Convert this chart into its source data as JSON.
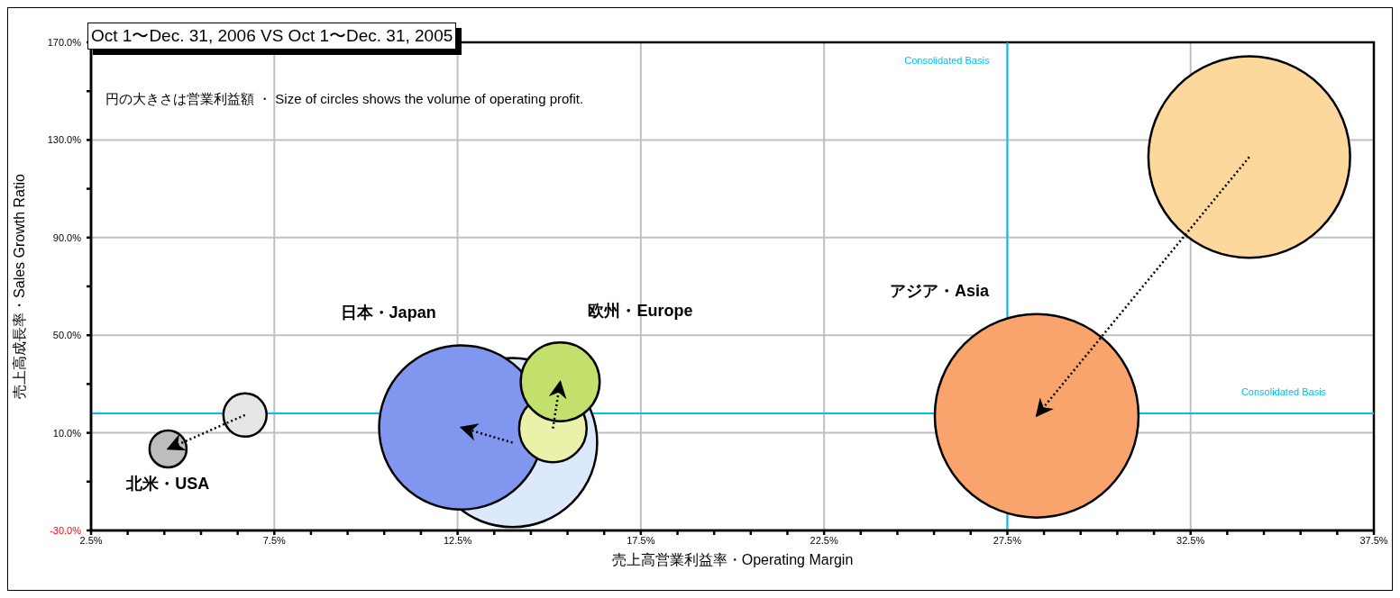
{
  "chart_data": {
    "type": "bubble",
    "title": "Oct 1〜Dec. 31, 2006 VS Oct 1〜Dec. 31, 2005",
    "subtitle": "円の大きさは営業利益額 ・ Size of circles shows the volume of operating profit.",
    "xlabel": "売上高営業利益率・Operating Margin",
    "ylabel": "売上高成長率・Sales Growth Ratio",
    "series": [
      {
        "x": [
          6.7,
          4.6
        ],
        "values": [
          17.3,
          3.4
        ],
        "sizes": [
          0.045,
          0.033
        ],
        "colors": [
          "#e6e6e6",
          "#bdbdbd"
        ]
      },
      {
        "x": [
          14.0,
          12.6
        ],
        "values": [
          6.0,
          12.2
        ],
        "sizes": [
          0.69,
          0.65
        ],
        "colors": [
          "#dce9fb",
          "#8197ef"
        ]
      },
      {
        "x": [
          15.1,
          15.3
        ],
        "values": [
          11.8,
          30.9
        ],
        "sizes": [
          0.11,
          0.15
        ],
        "colors": [
          "#e9f2a8",
          "#c4e06c"
        ]
      },
      {
        "x": [
          34.1,
          28.3
        ],
        "values": [
          123,
          17.0
        ],
        "sizes": [
          0.98,
          1
        ],
        "colors": [
          "#fdd89c",
          "#f8a46c"
        ]
      }
    ],
    "annotations": [
      "北米・USA",
      "日本・Japan",
      "欧州・Europe",
      "アジア・Asia"
    ],
    "ref_lines": [
      {
        "axis": "x",
        "value": 27.5,
        "label": "Consolidated Basis",
        "color": "#00c0f0"
      },
      {
        "axis": "y",
        "value": 18,
        "label": "Consolidated Basis",
        "color": "#00c0f0"
      }
    ],
    "xlim": [
      2.5,
      37.5
    ],
    "xticks": [
      {
        "value": 2.5,
        "label": "2.5%"
      },
      {
        "value": 3.5,
        "label": null
      },
      {
        "value": 4.5,
        "label": null
      },
      {
        "value": 5.5,
        "label": null
      },
      {
        "value": 6.5,
        "label": null
      },
      {
        "value": 7.5,
        "label": "7.5%"
      },
      {
        "value": 8.5,
        "label": null
      },
      {
        "value": 9.5,
        "label": null
      },
      {
        "value": 10.5,
        "label": null
      },
      {
        "value": 11.5,
        "label": null
      },
      {
        "value": 12.5,
        "label": "12.5%"
      },
      {
        "value": 13.5,
        "label": null
      },
      {
        "value": 14.5,
        "label": null
      },
      {
        "value": 15.5,
        "label": null
      },
      {
        "value": 16.5,
        "label": null
      },
      {
        "value": 17.5,
        "label": "17.5%"
      },
      {
        "value": 18.5,
        "label": null
      },
      {
        "value": 19.5,
        "label": null
      },
      {
        "value": 20.5,
        "label": null
      },
      {
        "value": 21.5,
        "label": null
      },
      {
        "value": 22.5,
        "label": "22.5%"
      },
      {
        "value": 23.5,
        "label": null
      },
      {
        "value": 24.5,
        "label": null
      },
      {
        "value": 25.5,
        "label": null
      },
      {
        "value": 26.5,
        "label": null
      },
      {
        "value": 27.5,
        "label": "27.5%"
      },
      {
        "value": 28.5,
        "label": null
      },
      {
        "value": 29.5,
        "label": null
      },
      {
        "value": 30.5,
        "label": null
      },
      {
        "value": 31.5,
        "label": null
      },
      {
        "value": 32.5,
        "label": "32.5%"
      },
      {
        "value": 33.5,
        "label": null
      },
      {
        "value": 34.5,
        "label": null
      },
      {
        "value": 35.5,
        "label": null
      },
      {
        "value": 36.5,
        "label": null
      },
      {
        "value": 37.5,
        "label": "37.5%"
      }
    ],
    "ylim": [
      -30,
      170
    ],
    "yticks": [
      {
        "value": -30,
        "label": "-30.0%"
      },
      {
        "value": -10,
        "label": null
      },
      {
        "value": 10,
        "label": "10.0%"
      },
      {
        "value": 30,
        "label": null
      },
      {
        "value": 50,
        "label": "50.0%"
      },
      {
        "value": 70,
        "label": null
      },
      {
        "value": 90,
        "label": "90.0%"
      },
      {
        "value": 110,
        "label": null
      },
      {
        "value": 130,
        "label": "130.0%"
      },
      {
        "value": 150,
        "label": null
      },
      {
        "value": 170,
        "label": "170.0%"
      }
    ],
    "grid": true,
    "marker": "circle",
    "line_style": "dotted",
    "legend": false
  }
}
